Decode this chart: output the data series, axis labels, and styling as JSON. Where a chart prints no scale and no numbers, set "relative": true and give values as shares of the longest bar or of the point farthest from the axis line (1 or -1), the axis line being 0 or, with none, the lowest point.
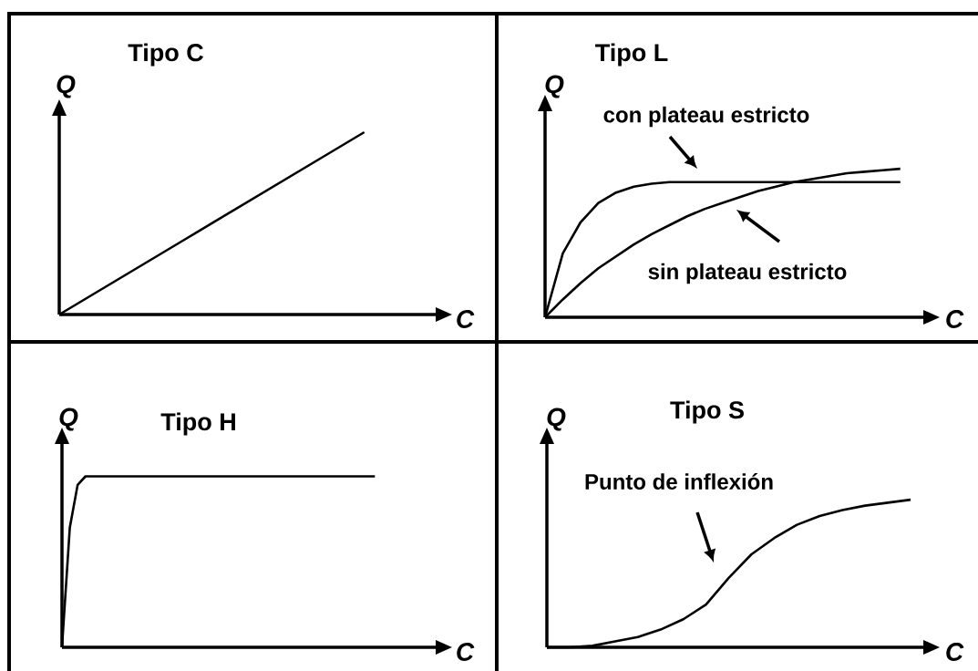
{
  "chart_data": [
    {
      "type": "line",
      "title": "Tipo C",
      "xlabel": "C",
      "ylabel": "Q",
      "relative": true,
      "marker": "none",
      "line_style": "solid",
      "categories": [
        null,
        null,
        null,
        null,
        null,
        null,
        null,
        null,
        null,
        null,
        null
      ],
      "series": [
        {
          "color": "#000000",
          "values": [
            0,
            0.1,
            0.2,
            0.3,
            0.4,
            0.5,
            0.6,
            0.7,
            0.8,
            0.9,
            1.0
          ]
        }
      ]
    },
    {
      "type": "line",
      "title": "Tipo L",
      "xlabel": "C",
      "ylabel": "Q",
      "relative": true,
      "marker": "none",
      "line_style": "solid",
      "categories": [
        null,
        null,
        null,
        null,
        null,
        null,
        null,
        null,
        null,
        null,
        null,
        null,
        null,
        null,
        null,
        null,
        null,
        null,
        null,
        null,
        null
      ],
      "series": [
        {
          "name": "con plateau estricto",
          "color": "#000000",
          "values": [
            0,
            0.43,
            0.64,
            0.77,
            0.84,
            0.88,
            0.9,
            0.91,
            0.91,
            0.91,
            0.91,
            0.91,
            0.91,
            0.91,
            0.91,
            0.91,
            0.91,
            0.91,
            0.91,
            0.91,
            0.91
          ]
        },
        {
          "name": "sin plateau  estricto",
          "color": "#000000",
          "values": [
            0,
            0.12,
            0.23,
            0.33,
            0.41,
            0.49,
            0.56,
            0.62,
            0.68,
            0.73,
            0.77,
            0.81,
            0.85,
            0.88,
            0.91,
            0.93,
            0.95,
            0.97,
            0.98,
            0.99,
            1.0
          ]
        }
      ]
    },
    {
      "type": "line",
      "title": "Tipo H",
      "xlabel": "C",
      "ylabel": "Q",
      "relative": true,
      "marker": "none",
      "line_style": "solid",
      "categories": [
        null,
        null,
        null,
        null,
        null,
        null,
        null,
        null,
        null,
        null,
        null,
        null,
        null,
        null,
        null,
        null,
        null,
        null,
        null,
        null,
        null,
        null,
        null,
        null,
        null,
        null,
        null,
        null,
        null,
        null,
        null,
        null,
        null,
        null,
        null,
        null,
        null,
        null,
        null,
        null,
        null
      ],
      "series": [
        {
          "color": "#000000",
          "values": [
            0,
            0.7,
            0.95,
            1,
            1,
            1,
            1,
            1,
            1,
            1,
            1,
            1,
            1,
            1,
            1,
            1,
            1,
            1,
            1,
            1,
            1,
            1,
            1,
            1,
            1,
            1,
            1,
            1,
            1,
            1,
            1,
            1,
            1,
            1,
            1,
            1,
            1,
            1,
            1,
            1,
            1
          ]
        }
      ]
    },
    {
      "type": "line",
      "title": "Tipo S",
      "xlabel": "C",
      "ylabel": "Q",
      "relative": true,
      "marker": "none",
      "line_style": "solid",
      "annotations": [
        "Punto de inflexión"
      ],
      "categories": [
        null,
        null,
        null,
        null,
        null,
        null,
        null,
        null,
        null,
        null,
        null,
        null,
        null,
        null,
        null,
        null,
        null
      ],
      "series": [
        {
          "color": "#000000",
          "values": [
            0,
            0,
            0.01,
            0.04,
            0.07,
            0.12,
            0.19,
            0.29,
            0.47,
            0.63,
            0.74,
            0.83,
            0.89,
            0.93,
            0.96,
            0.98,
            1.0
          ]
        }
      ]
    }
  ]
}
